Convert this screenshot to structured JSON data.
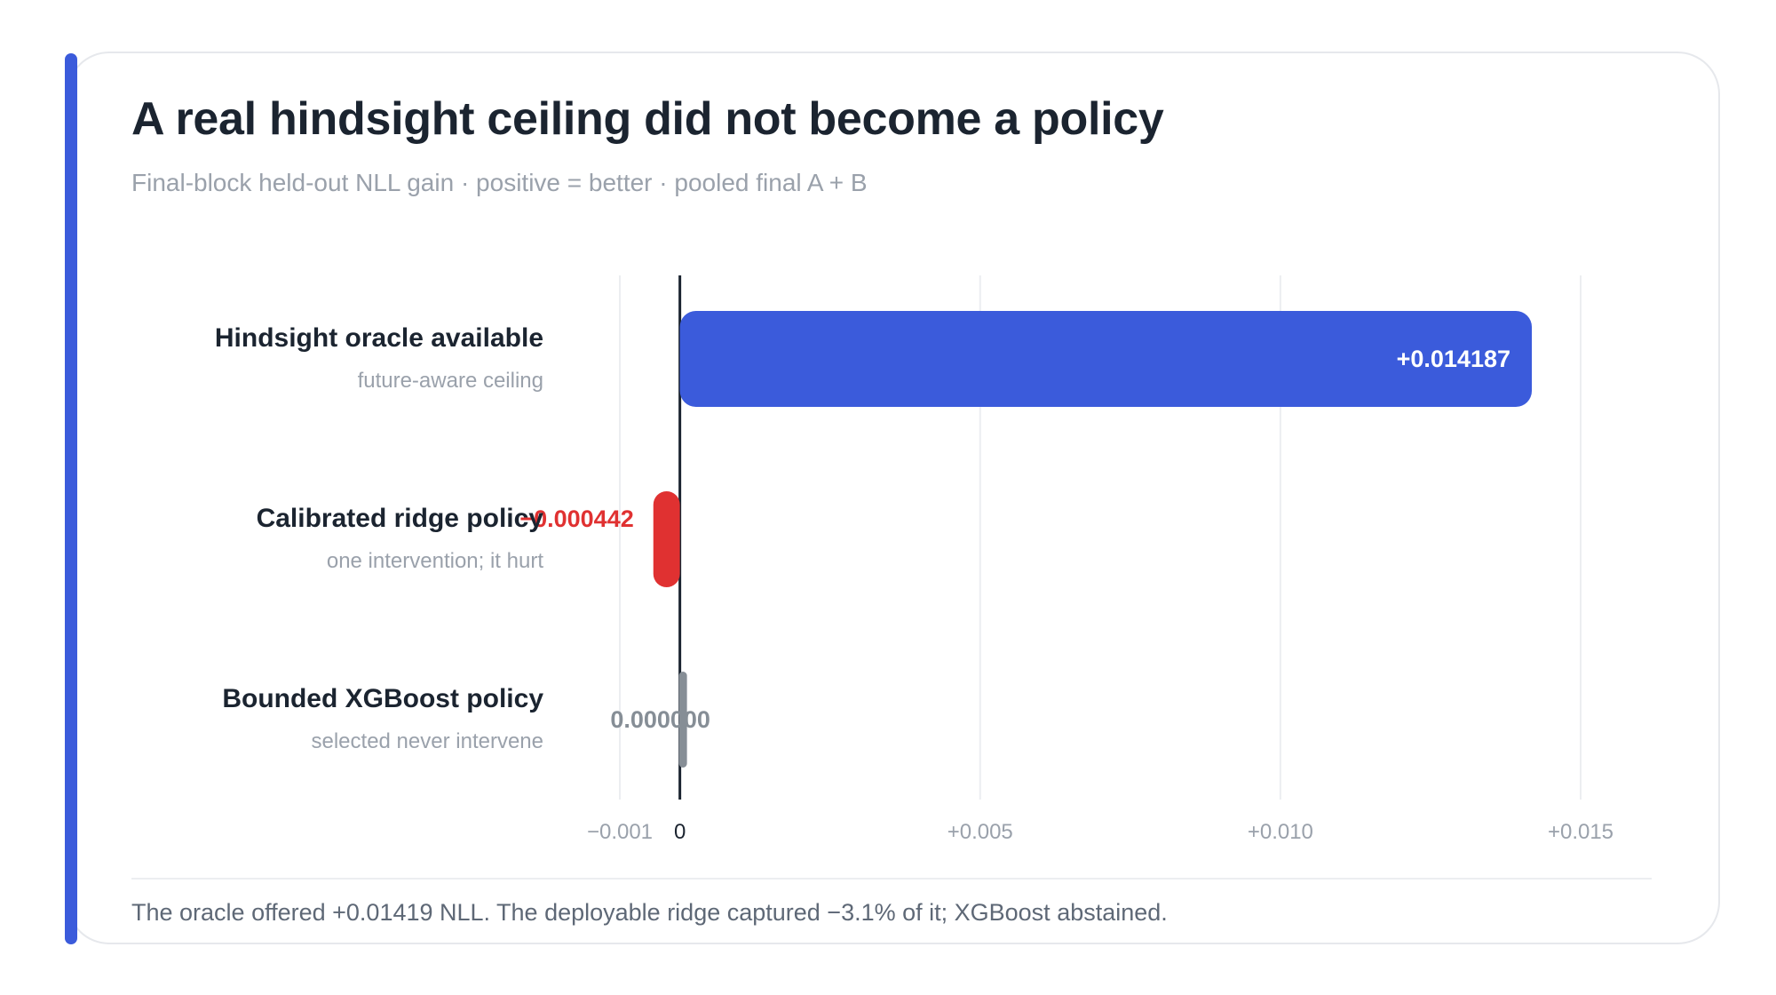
{
  "title": "A real hindsight ceiling did not become a policy",
  "subtitle": "Final-block held-out NLL gain · positive = better · pooled final A + B",
  "footnote": "The oracle offered +0.01419 NLL. The deployable ridge captured −3.1% of it; XGBoost abstained.",
  "colors": {
    "accent": "#3b5bdb",
    "positive": "#3b5bdb",
    "negative": "#e03131",
    "neutral": "#868e96",
    "text": "#1b2430",
    "muted": "#9aa1ab"
  },
  "chart_data": {
    "type": "bar",
    "orientation": "horizontal",
    "categories": [
      "Hindsight oracle available",
      "Calibrated ridge policy",
      "Bounded XGBoost policy"
    ],
    "descriptions": [
      "future-aware ceiling",
      "one intervention; it hurt",
      "selected never intervene"
    ],
    "values": [
      0.014187,
      -0.000442,
      0.0
    ],
    "value_labels": [
      "+0.014187",
      "−0.000442",
      "0.000000"
    ],
    "xlim": [
      -0.001,
      0.015
    ],
    "ticks": [
      -0.001,
      0,
      0.005,
      0.01,
      0.015
    ],
    "tick_labels": [
      "−0.001",
      "0",
      "+0.005",
      "+0.010",
      "+0.015"
    ],
    "grid": true,
    "title": "",
    "xlabel": "",
    "ylabel": ""
  }
}
